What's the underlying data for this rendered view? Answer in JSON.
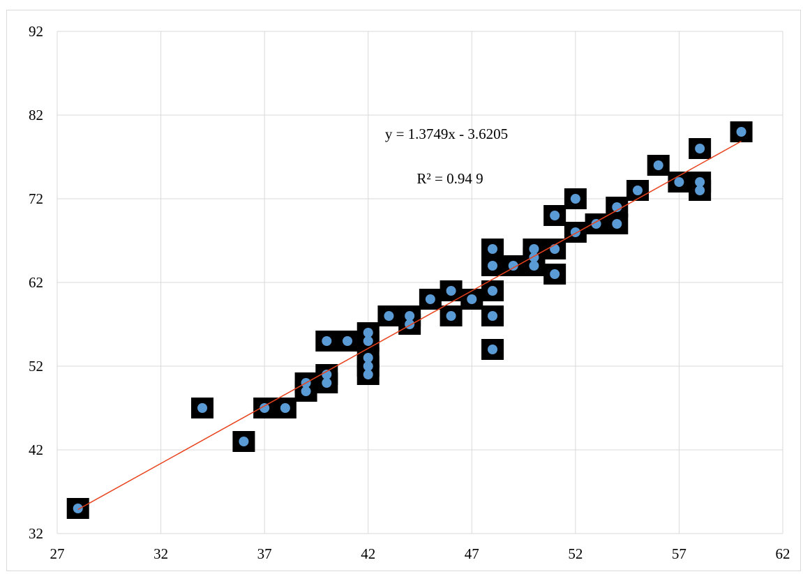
{
  "chart_data": {
    "type": "scatter",
    "title": "",
    "xlabel": "",
    "ylabel": "",
    "xlim": [
      27,
      62
    ],
    "ylim": [
      32,
      92
    ],
    "x_ticks": [
      27,
      32,
      37,
      42,
      47,
      52,
      57,
      62
    ],
    "y_ticks": [
      32,
      42,
      52,
      62,
      72,
      82,
      92
    ],
    "grid": true,
    "legend": "none",
    "colors": {
      "point": "#5b9bd5",
      "marker_bg": "#000000",
      "trendline": "#e8421c"
    },
    "points": [
      [
        28,
        35
      ],
      [
        34,
        47
      ],
      [
        36,
        43
      ],
      [
        37,
        47
      ],
      [
        38,
        47
      ],
      [
        39,
        49
      ],
      [
        39,
        50
      ],
      [
        40,
        50
      ],
      [
        40,
        51
      ],
      [
        40,
        55
      ],
      [
        41,
        55
      ],
      [
        42,
        51
      ],
      [
        42,
        52
      ],
      [
        42,
        53
      ],
      [
        42,
        55
      ],
      [
        42,
        56
      ],
      [
        43,
        58
      ],
      [
        44,
        57
      ],
      [
        44,
        58
      ],
      [
        45,
        60
      ],
      [
        46,
        58
      ],
      [
        46,
        61
      ],
      [
        47,
        60
      ],
      [
        48,
        54
      ],
      [
        48,
        58
      ],
      [
        48,
        61
      ],
      [
        48,
        64
      ],
      [
        48,
        66
      ],
      [
        49,
        64
      ],
      [
        50,
        64
      ],
      [
        50,
        65
      ],
      [
        50,
        66
      ],
      [
        51,
        63
      ],
      [
        51,
        66
      ],
      [
        51,
        70
      ],
      [
        52,
        68
      ],
      [
        52,
        72
      ],
      [
        53,
        69
      ],
      [
        54,
        69
      ],
      [
        54,
        71
      ],
      [
        55,
        73
      ],
      [
        56,
        76
      ],
      [
        57,
        74
      ],
      [
        58,
        73
      ],
      [
        58,
        74
      ],
      [
        58,
        78
      ],
      [
        60,
        80
      ]
    ],
    "trendline": {
      "type": "linear",
      "slope": 1.3749,
      "intercept": -3.6205,
      "x_range": [
        28,
        60
      ],
      "equation": "y = 1.3749x -  3.6205",
      "r2_label": "R² = 0.94 9"
    }
  }
}
